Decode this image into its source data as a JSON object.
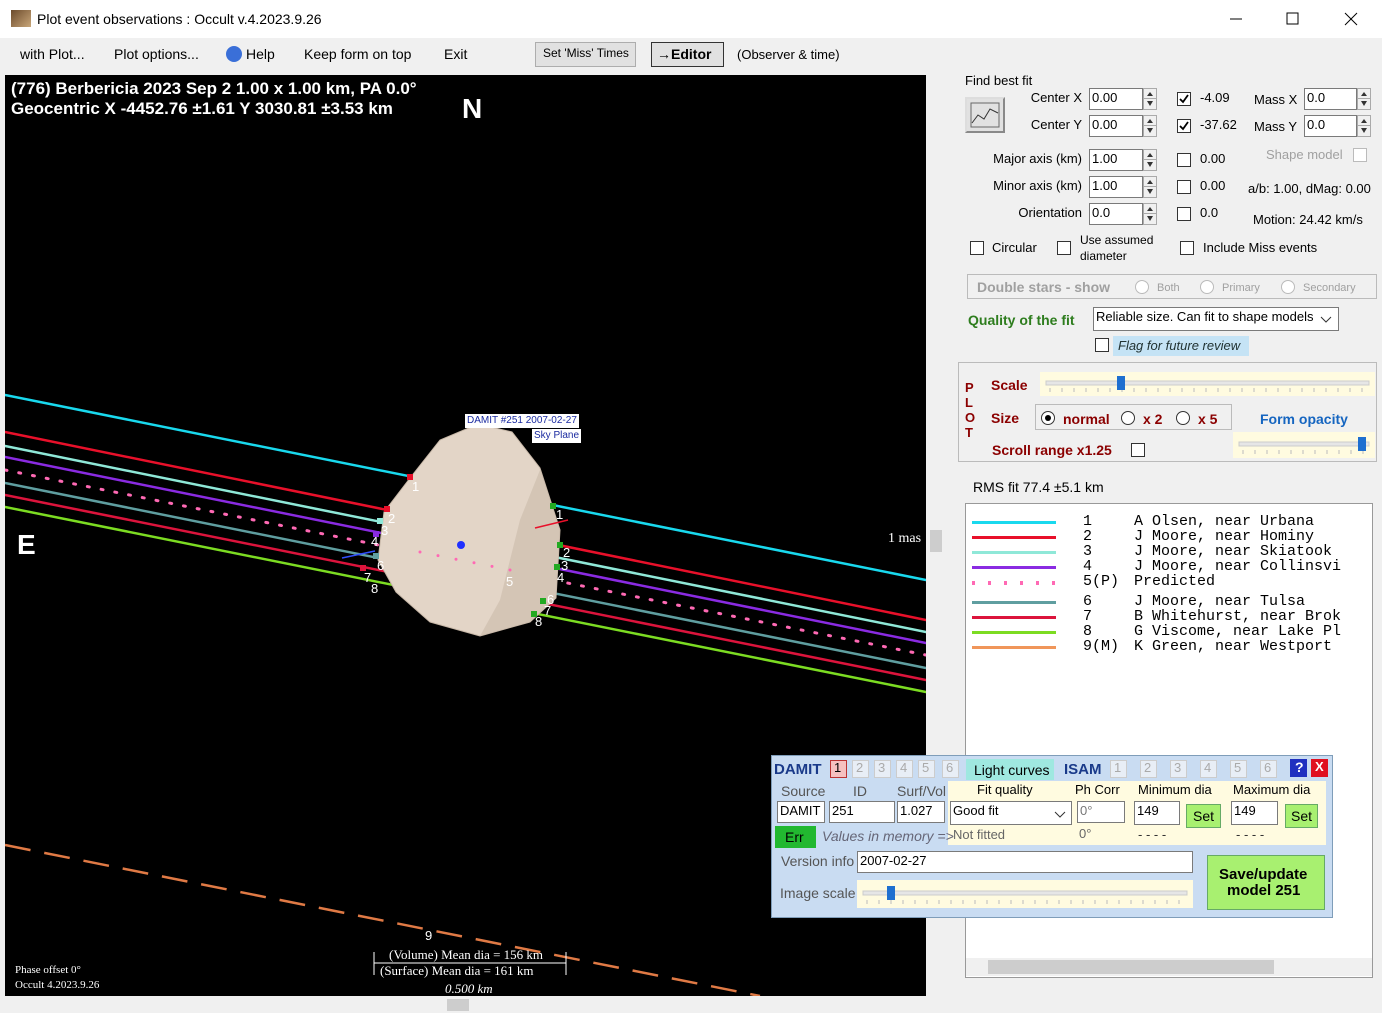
{
  "window": {
    "title": "Plot event observations : Occult v.4.2023.9.26"
  },
  "menu": {
    "items": [
      "with Plot...",
      "Plot options...",
      "Help",
      "Keep form on top",
      "Exit"
    ],
    "set_miss_times": "Set 'Miss' Times",
    "editor": "→Editor",
    "observer_time": "(Observer & time)"
  },
  "plot": {
    "header_line1": "(776) Berbericia  2023 Sep 2   1.00 x 1.00 km, PA 0.0°",
    "header_line2": "Geocentric  X  -4452.76 ±1.61  Y 3030.81 ±3.53 km",
    "north": "N",
    "east": "E",
    "shape_label": "DAMIT #251 2007-02-27",
    "sky_plane": "Sky Plane",
    "scale_mas": "1 mas",
    "chord_labels": [
      "1",
      "2",
      "3",
      "4",
      "6",
      "7",
      "8",
      "1",
      "2",
      "3",
      "4",
      "6",
      "7",
      "8",
      "5",
      "9"
    ],
    "volume_dia": "(Volume) Mean dia = 156 km",
    "surface_dia": "(Surface) Mean dia = 161 km",
    "scale_km": "0.500 km",
    "phase_offset": "Phase offset 0°",
    "version": "Occult 4.2023.9.26"
  },
  "fit": {
    "find_best_fit": "Find best fit",
    "center_x_label": "Center X",
    "center_x": "0.00",
    "center_x_result": "-4.09",
    "mass_x_label": "Mass X",
    "mass_x": "0.0",
    "center_y_label": "Center Y",
    "center_y": "0.00",
    "center_y_result": "-37.62",
    "mass_y_label": "Mass Y",
    "mass_y": "0.0",
    "major_label": "Major axis (km)",
    "major": "1.00",
    "major_result": "0.00",
    "shape_model": "Shape model",
    "minor_label": "Minor axis (km)",
    "minor": "1.00",
    "minor_result": "0.00",
    "ab_dmag": "a/b: 1.00, dMag: 0.00",
    "orientation_label": "Orientation",
    "orientation": "0.0",
    "orientation_result": "0.0",
    "motion": "Motion: 24.42 km/s",
    "circular": "Circular",
    "use_assumed_1": "Use assumed",
    "use_assumed_2": "diameter",
    "include_miss": "Include Miss events",
    "double_stars": "Double stars - show",
    "both": "Both",
    "primary": "Primary",
    "secondary": "Secondary",
    "quality_label": "Quality of the fit",
    "quality": "Reliable size. Can fit to shape models",
    "flag": "Flag for future review"
  },
  "plot_options": {
    "plot": "PLOT",
    "scale": "Scale",
    "size": "Size",
    "normal": "normal",
    "x2": "x 2",
    "x5": "x 5",
    "form_opacity": "Form opacity",
    "scroll_range": "Scroll range x1.25"
  },
  "rms": "RMS fit 77.4 ±5.1 km",
  "legend": [
    {
      "id": "1",
      "observer": "A Olsen, near Urbana"
    },
    {
      "id": "2",
      "observer": "J Moore, near Hominy"
    },
    {
      "id": "3",
      "observer": "J Moore, near Skiatook"
    },
    {
      "id": "4",
      "observer": "J Moore, near Collinsvi"
    },
    {
      "id": "5(P)",
      "observer": "Predicted"
    },
    {
      "id": "6",
      "observer": "J Moore, near Tulsa"
    },
    {
      "id": "7",
      "observer": "B Whitehurst, near Brok"
    },
    {
      "id": "8",
      "observer": "G Viscome, near Lake Pl"
    },
    {
      "id": "9(M)",
      "observer": "K Green, near Westport"
    }
  ],
  "damit": {
    "damit": "DAMIT",
    "damit_tabs": [
      "1",
      "2",
      "3",
      "4",
      "5",
      "6"
    ],
    "light_curves": "Light curves",
    "isam": "ISAM",
    "isam_tabs": [
      "1",
      "2",
      "3",
      "4",
      "5",
      "6"
    ],
    "help": "?",
    "close": "X",
    "headers": [
      "Source",
      "ID",
      "Surf/Vol",
      "Fit quality",
      "Ph Corr",
      "Minimum dia",
      "Maximum dia"
    ],
    "source": "DAMIT",
    "id": "251",
    "surf_vol": "1.027",
    "fit_quality": "Good fit",
    "ph_corr": "0°",
    "min_dia": "149",
    "set_min": "Set",
    "max_dia": "149",
    "set_max": "Set",
    "err": "Err",
    "values_in_memory": "Values in memory =>",
    "not_fitted": "Not fitted",
    "mem_ph_corr": "0°",
    "mem_min": "- - - -",
    "mem_max": "- - - -",
    "version_info_label": "Version info",
    "version_info": "2007-02-27",
    "image_scale": "Image scale",
    "save_1": "Save/update",
    "save_2": "model 251"
  }
}
